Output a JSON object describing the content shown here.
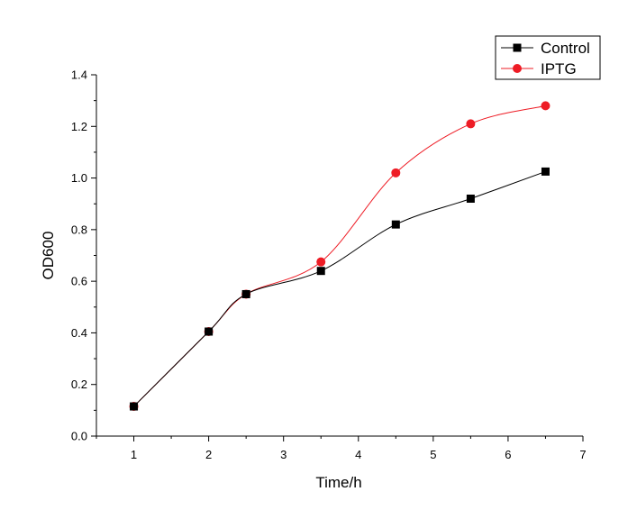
{
  "chart_data": {
    "type": "line",
    "title": "",
    "xlabel": "Time/h",
    "ylabel": "OD600",
    "xlim": [
      0.5,
      7
    ],
    "ylim": [
      0,
      1.4
    ],
    "x_ticks": [
      1,
      2,
      3,
      4,
      5,
      6,
      7
    ],
    "y_ticks": [
      0.0,
      0.2,
      0.4,
      0.6,
      0.8,
      1.0,
      1.2,
      1.4
    ],
    "x_tick_labels": [
      "1",
      "2",
      "3",
      "4",
      "5",
      "6",
      "7"
    ],
    "y_tick_labels": [
      "0.0",
      "0.2",
      "0.4",
      "0.6",
      "0.8",
      "1.0",
      "1.2",
      "1.4"
    ],
    "grid": false,
    "legend_position": "top-right",
    "series": [
      {
        "name": "Control",
        "marker": "square",
        "color": "#000000",
        "x": [
          1,
          2,
          2.5,
          3.5,
          4.5,
          5.5,
          6.5
        ],
        "y": [
          0.115,
          0.405,
          0.55,
          0.64,
          0.82,
          0.92,
          1.025
        ]
      },
      {
        "name": "IPTG",
        "marker": "circle",
        "color": "#ee1c25",
        "x": [
          1,
          2,
          2.5,
          3.5,
          4.5,
          5.5,
          6.5
        ],
        "y": [
          0.115,
          0.405,
          0.55,
          0.675,
          1.02,
          1.21,
          1.28
        ]
      }
    ]
  }
}
